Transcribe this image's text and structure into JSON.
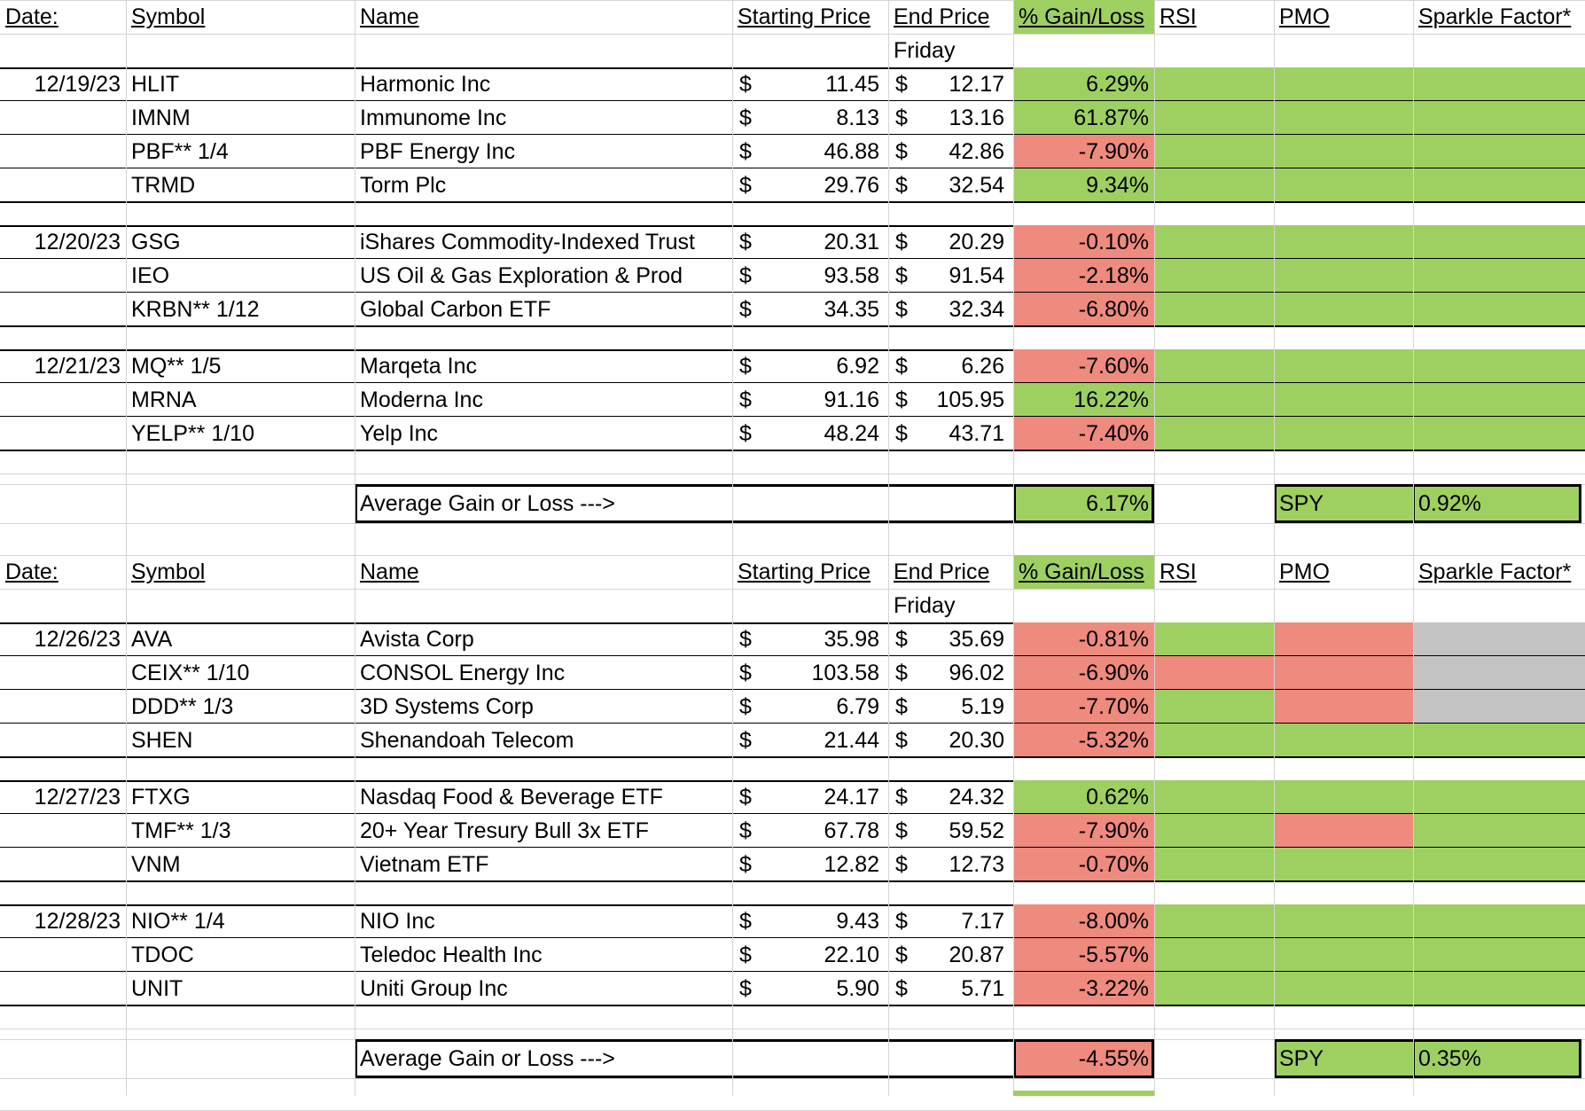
{
  "headers": {
    "date": "Date:",
    "symbol": "Symbol",
    "name": "Name",
    "start": "Starting Price",
    "end": "End Price",
    "gain": "% Gain/Loss",
    "rsi": "RSI",
    "pmo": "PMO",
    "sparkle": "Sparkle Factor*",
    "friday": "Friday"
  },
  "summary_label": "Average Gain or Loss --->",
  "spy_label": "SPY",
  "currency": "$",
  "colors": {
    "green": "#9ed061",
    "red": "#ee8a7e",
    "gray": "#c3c3c3"
  },
  "blocks": [
    {
      "groups": [
        {
          "date": "12/19/23",
          "rows": [
            {
              "symbol": "HLIT",
              "name": "Harmonic Inc",
              "start": "11.45",
              "end": "12.17",
              "gain": "6.29%",
              "gain_color": "green",
              "rsi": "green",
              "pmo": "green",
              "sparkle": "green"
            },
            {
              "symbol": "IMNM",
              "name": "Immunome Inc",
              "start": "8.13",
              "end": "13.16",
              "gain": "61.87%",
              "gain_color": "green",
              "rsi": "green",
              "pmo": "green",
              "sparkle": "green"
            },
            {
              "symbol": "PBF** 1/4",
              "name": "PBF Energy Inc",
              "start": "46.88",
              "end": "42.86",
              "gain": "-7.90%",
              "gain_color": "red",
              "rsi": "green",
              "pmo": "green",
              "sparkle": "green"
            },
            {
              "symbol": "TRMD",
              "name": "Torm Plc",
              "start": "29.76",
              "end": "32.54",
              "gain": "9.34%",
              "gain_color": "green",
              "rsi": "green",
              "pmo": "green",
              "sparkle": "green"
            }
          ]
        },
        {
          "date": "12/20/23",
          "rows": [
            {
              "symbol": "GSG",
              "name": "iShares Commodity-Indexed Trust",
              "start": "20.31",
              "end": "20.29",
              "gain": "-0.10%",
              "gain_color": "red",
              "rsi": "green",
              "pmo": "green",
              "sparkle": "green"
            },
            {
              "symbol": "IEO",
              "name": "US Oil & Gas Exploration & Prod",
              "start": "93.58",
              "end": "91.54",
              "gain": "-2.18%",
              "gain_color": "red",
              "rsi": "green",
              "pmo": "green",
              "sparkle": "green"
            },
            {
              "symbol": "KRBN** 1/12",
              "name": "Global Carbon ETF",
              "start": "34.35",
              "end": "32.34",
              "gain": "-6.80%",
              "gain_color": "red",
              "rsi": "green",
              "pmo": "green",
              "sparkle": "green"
            }
          ]
        },
        {
          "date": "12/21/23",
          "rows": [
            {
              "symbol": "MQ** 1/5",
              "name": "Marqeta Inc",
              "start": "6.92",
              "end": "6.26",
              "gain": "-7.60%",
              "gain_color": "red",
              "rsi": "green",
              "pmo": "green",
              "sparkle": "green"
            },
            {
              "symbol": "MRNA",
              "name": "Moderna Inc",
              "start": "91.16",
              "end": "105.95",
              "gain": "16.22%",
              "gain_color": "green",
              "rsi": "green",
              "pmo": "green",
              "sparkle": "green"
            },
            {
              "symbol": "YELP** 1/10",
              "name": "Yelp Inc",
              "start": "48.24",
              "end": "43.71",
              "gain": "-7.40%",
              "gain_color": "red",
              "rsi": "green",
              "pmo": "green",
              "sparkle": "green"
            }
          ]
        }
      ],
      "average": "6.17%",
      "average_color": "green",
      "spy": "0.92%"
    },
    {
      "groups": [
        {
          "date": "12/26/23",
          "rows": [
            {
              "symbol": "AVA",
              "name": "Avista Corp",
              "start": "35.98",
              "end": "35.69",
              "gain": "-0.81%",
              "gain_color": "red",
              "rsi": "green",
              "pmo": "red",
              "sparkle": "gray"
            },
            {
              "symbol": "CEIX** 1/10",
              "name": "CONSOL Energy Inc",
              "start": "103.58",
              "end": "96.02",
              "gain": "-6.90%",
              "gain_color": "red",
              "rsi": "red",
              "pmo": "red",
              "sparkle": "gray"
            },
            {
              "symbol": "DDD** 1/3",
              "name": "3D Systems Corp",
              "start": "6.79",
              "end": "5.19",
              "gain": "-7.70%",
              "gain_color": "red",
              "rsi": "green",
              "pmo": "red",
              "sparkle": "gray"
            },
            {
              "symbol": "SHEN",
              "name": "Shenandoah Telecom",
              "start": "21.44",
              "end": "20.30",
              "gain": "-5.32%",
              "gain_color": "red",
              "rsi": "green",
              "pmo": "green",
              "sparkle": "green"
            }
          ]
        },
        {
          "date": "12/27/23",
          "rows": [
            {
              "symbol": "FTXG",
              "name": "Nasdaq Food & Beverage ETF",
              "start": "24.17",
              "end": "24.32",
              "gain": "0.62%",
              "gain_color": "green",
              "rsi": "green",
              "pmo": "green",
              "sparkle": "green"
            },
            {
              "symbol": "TMF** 1/3",
              "name": "20+ Year Tresury Bull 3x ETF",
              "start": "67.78",
              "end": "59.52",
              "gain": "-7.90%",
              "gain_color": "red",
              "rsi": "green",
              "pmo": "red",
              "sparkle": "green"
            },
            {
              "symbol": "VNM",
              "name": "Vietnam ETF",
              "start": "12.82",
              "end": "12.73",
              "gain": "-0.70%",
              "gain_color": "red",
              "rsi": "green",
              "pmo": "green",
              "sparkle": "green"
            }
          ]
        },
        {
          "date": "12/28/23",
          "rows": [
            {
              "symbol": "NIO** 1/4",
              "name": "NIO Inc",
              "start": "9.43",
              "end": "7.17",
              "gain": "-8.00%",
              "gain_color": "red",
              "rsi": "green",
              "pmo": "green",
              "sparkle": "green"
            },
            {
              "symbol": "TDOC",
              "name": "Teledoc Health Inc",
              "start": "22.10",
              "end": "20.87",
              "gain": "-5.57%",
              "gain_color": "red",
              "rsi": "green",
              "pmo": "green",
              "sparkle": "green"
            },
            {
              "symbol": "UNIT",
              "name": "Uniti Group Inc",
              "start": "5.90",
              "end": "5.71",
              "gain": "-3.22%",
              "gain_color": "red",
              "rsi": "green",
              "pmo": "green",
              "sparkle": "green"
            }
          ]
        }
      ],
      "average": "-4.55%",
      "average_color": "red",
      "spy": "0.35%"
    }
  ]
}
